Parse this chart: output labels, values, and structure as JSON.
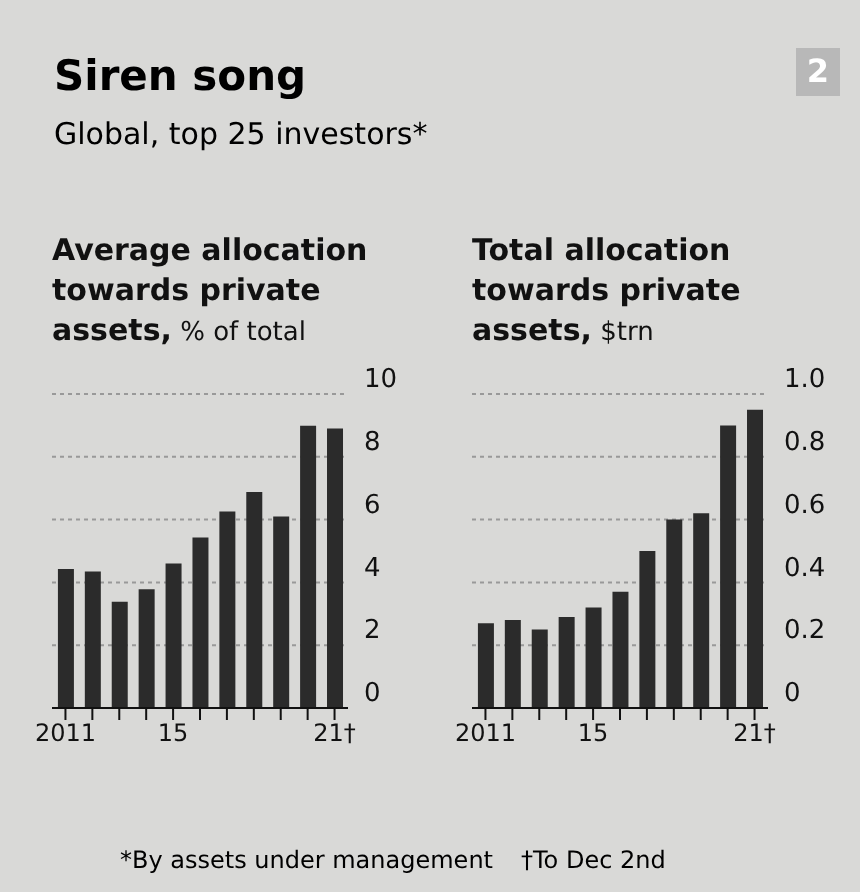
{
  "chart_data": [
    {
      "type": "bar",
      "title": "Siren song",
      "subtitle": "Global, top 25 investors*",
      "annotations": [
        "2"
      ],
      "ylabel": "Average allocation towards private assets, % of total",
      "categories": [
        "2011",
        null,
        null,
        null,
        "15",
        null,
        null,
        null,
        null,
        null,
        "21†"
      ],
      "values": [
        4.43,
        4.35,
        3.38,
        3.78,
        4.6,
        5.43,
        6.26,
        6.88,
        6.1,
        8.99,
        8.9
      ],
      "color": "#2b2b2b",
      "ylim": [
        0,
        10
      ],
      "yticks": [
        0,
        2,
        4,
        6,
        8,
        10
      ],
      "grid": "y"
    },
    {
      "type": "bar",
      "ylabel": "Total allocation towards private assets, $trn",
      "annotations": [
        "*By assets under management",
        "†To Dec 2nd"
      ],
      "categories": [
        "2011",
        null,
        null,
        null,
        "15",
        null,
        null,
        null,
        null,
        null,
        "21†"
      ],
      "values": [
        0.27,
        0.28,
        0.25,
        0.29,
        0.32,
        0.37,
        0.5,
        0.6,
        0.62,
        0.9,
        0.95
      ],
      "color": "#2b2b2b",
      "ylim": [
        0,
        1.0
      ],
      "yticks": [
        0,
        0.2,
        0.4,
        0.6,
        0.8,
        {
          "value": 1.0,
          "label": "1.0"
        }
      ],
      "grid": "y"
    }
  ]
}
